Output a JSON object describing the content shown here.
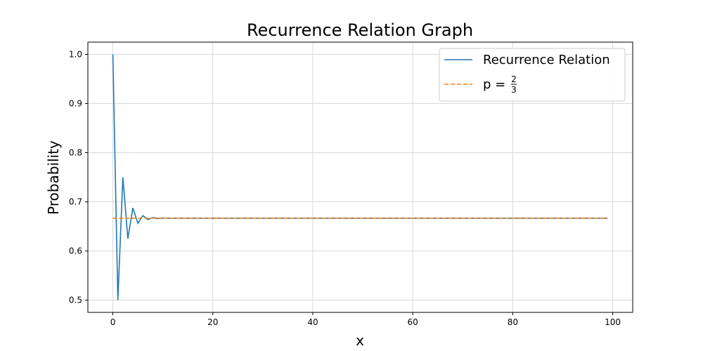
{
  "chart_data": {
    "type": "line",
    "title": "Recurrence Relation Graph",
    "xlabel": "x",
    "ylabel": "Probability",
    "xlim": [
      -5,
      104
    ],
    "ylim": [
      0.475,
      1.025
    ],
    "xticks": [
      0,
      20,
      40,
      60,
      80,
      100
    ],
    "yticks": [
      0.5,
      0.6,
      0.7,
      0.8,
      0.9,
      1.0
    ],
    "xtick_labels": [
      "0",
      "20",
      "40",
      "60",
      "80",
      "100"
    ],
    "ytick_labels": [
      "0.5",
      "0.6",
      "0.7",
      "0.8",
      "0.9",
      "1.0"
    ],
    "grid": true,
    "legend_position": "top-right",
    "series": [
      {
        "name": "Recurrence Relation",
        "style": "solid",
        "color": "#1f77b4",
        "x_range": [
          0,
          99
        ],
        "initial_values": [
          1.0,
          0.5,
          0.75,
          0.625,
          0.6875,
          0.65625,
          0.671875,
          0.6640625,
          0.66796875,
          0.666015625,
          0.6669921875,
          0.66650390625
        ],
        "steady_value": 0.6667
      },
      {
        "name": "p = 2/3",
        "legend_prefix": "p = ",
        "frac_num": "2",
        "frac_den": "3",
        "style": "dashed",
        "color": "#ff7f0e",
        "x_range": [
          0,
          99
        ],
        "value": 0.6667
      }
    ]
  }
}
